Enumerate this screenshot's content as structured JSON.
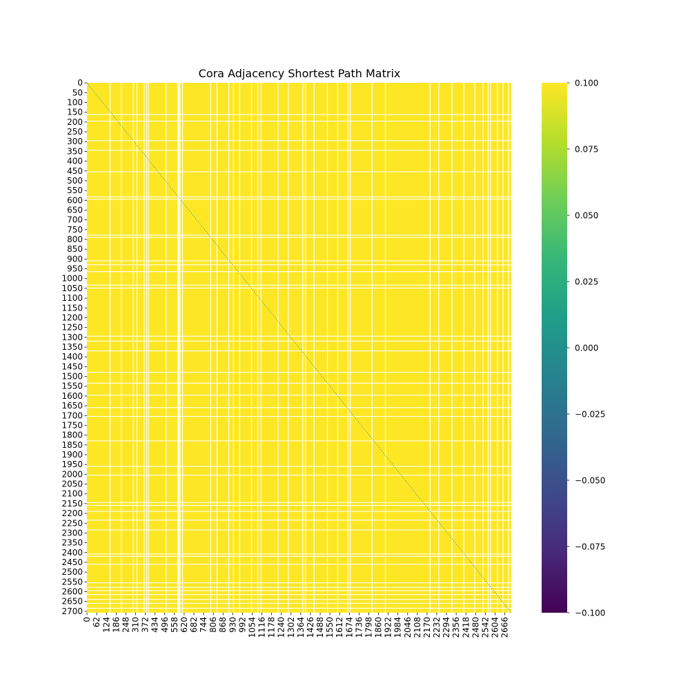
{
  "chart_data": {
    "type": "heatmap",
    "title": "Cora Adjacency Shortest Path Matrix",
    "n_nodes": 2708,
    "fill_value": 0.1,
    "fill_color": "#fde725",
    "gap_color": "#ffffff",
    "diagonal_value": 0,
    "diagonal_color": "#21918c",
    "y_ticks": [
      0,
      50,
      100,
      150,
      200,
      250,
      300,
      350,
      400,
      450,
      500,
      550,
      600,
      650,
      700,
      750,
      800,
      850,
      900,
      950,
      1000,
      1050,
      1100,
      1150,
      1200,
      1250,
      1300,
      1350,
      1400,
      1450,
      1500,
      1550,
      1600,
      1650,
      1700,
      1750,
      1800,
      1850,
      1900,
      1950,
      2000,
      2050,
      2100,
      2150,
      2200,
      2250,
      2300,
      2350,
      2400,
      2450,
      2500,
      2550,
      2600,
      2650,
      2700
    ],
    "x_ticks": [
      0,
      62,
      124,
      186,
      248,
      310,
      372,
      434,
      496,
      558,
      620,
      682,
      744,
      806,
      868,
      930,
      992,
      1054,
      1116,
      1178,
      1240,
      1302,
      1364,
      1426,
      1488,
      1550,
      1612,
      1674,
      1736,
      1798,
      1860,
      1922,
      1984,
      2046,
      2108,
      2170,
      2232,
      2294,
      2356,
      2418,
      2480,
      2542,
      2604,
      2666
    ],
    "empty_rows": [
      162,
      196,
      296,
      345,
      455,
      583,
      595,
      778,
      790,
      910,
      930,
      965,
      1034,
      1049,
      1295,
      1320,
      1370,
      1480,
      1535,
      1596,
      1660,
      1705,
      1830,
      1960,
      2005,
      2145,
      2160,
      2190,
      2235,
      2285,
      2408,
      2420,
      2460,
      2555,
      2578,
      2595,
      2615,
      2640,
      2660,
      2685
    ],
    "empty_cols": [
      148,
      220,
      296,
      320,
      365,
      380,
      392,
      505,
      580,
      590,
      610,
      790,
      830,
      905,
      935,
      975,
      1050,
      1090,
      1110,
      1220,
      1285,
      1378,
      1395,
      1450,
      1535,
      1600,
      1665,
      1680,
      1820,
      1905,
      2190,
      2245,
      2330,
      2405,
      2475,
      2528,
      2560,
      2575,
      2620,
      2655,
      2690
    ],
    "empty_wide_col": [
      582,
      596
    ],
    "colorbar": {
      "min": -0.1,
      "max": 0.1,
      "ticks": [
        0.1,
        0.075,
        0.05,
        0.025,
        0.0,
        -0.025,
        -0.05,
        -0.075,
        -0.1
      ],
      "tick_labels": [
        "0.100",
        "0.075",
        "0.050",
        "0.025",
        "0.000",
        "−0.025",
        "−0.050",
        "−0.075",
        "−0.100"
      ],
      "colormap": "viridis",
      "colormap_stops": [
        "#fde725",
        "#b5de2b",
        "#6ece58",
        "#35b779",
        "#1f9e89",
        "#26828e",
        "#31688e",
        "#3e4989",
        "#482878",
        "#440154"
      ]
    }
  }
}
